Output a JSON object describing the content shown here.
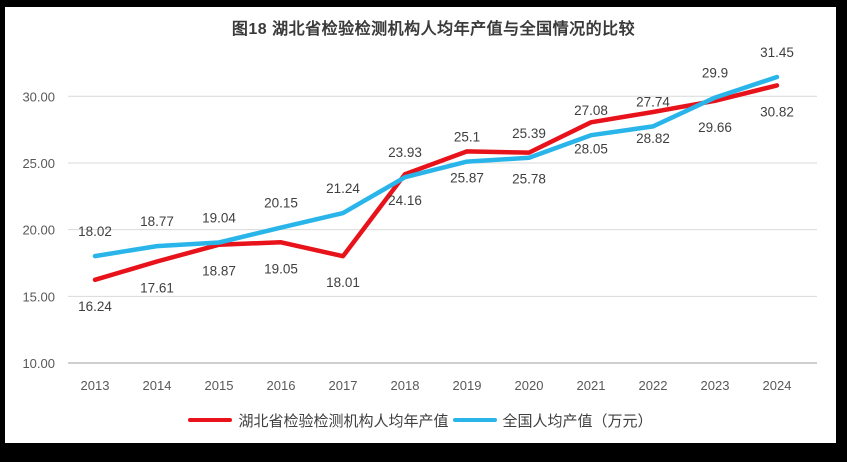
{
  "title": "图18  湖北省检验检测机构人均年产值与全国情况的比较",
  "chart_data": {
    "type": "line",
    "categories": [
      "2013",
      "2014",
      "2015",
      "2016",
      "2017",
      "2018",
      "2019",
      "2020",
      "2021",
      "2022",
      "2023",
      "2024"
    ],
    "series": [
      {
        "name": "湖北省检验检测机构人均年产值",
        "color": "#e8121a",
        "label_position": "below",
        "values": [
          16.24,
          17.61,
          18.87,
          19.05,
          18.01,
          24.16,
          25.87,
          25.78,
          28.05,
          28.82,
          29.66,
          30.82
        ],
        "labels": [
          "16.24",
          "17.61",
          "18.87",
          "19.05",
          "18.01",
          "24.16",
          "25.87",
          "25.78",
          "28.05",
          "28.82",
          "29.66",
          "30.82"
        ]
      },
      {
        "name": "全国人均产值（万元）",
        "color": "#29b5ea",
        "label_position": "above",
        "values": [
          18.02,
          18.77,
          19.04,
          20.15,
          21.24,
          23.93,
          25.1,
          25.39,
          27.08,
          27.74,
          29.9,
          31.45
        ],
        "labels": [
          "18.02",
          "18.77",
          "19.04",
          "20.15",
          "21.24",
          "23.93",
          "25.1",
          "25.39",
          "27.08",
          "27.74",
          "29.9",
          "31.45"
        ]
      }
    ],
    "ylim": [
      10,
      32.6
    ],
    "yticks": [
      "10.00",
      "15.00",
      "20.00",
      "25.00",
      "30.00"
    ],
    "grid": true,
    "legend_position": "bottom",
    "style": {
      "grid_color": "#d9d9d9",
      "axis_color": "#cfcfcf",
      "tick_color": "#595959",
      "data_label_color": "#3f3f3f",
      "title_color": "#3a3a3a",
      "background": "#ffffff",
      "frame_color": "#000000"
    }
  }
}
